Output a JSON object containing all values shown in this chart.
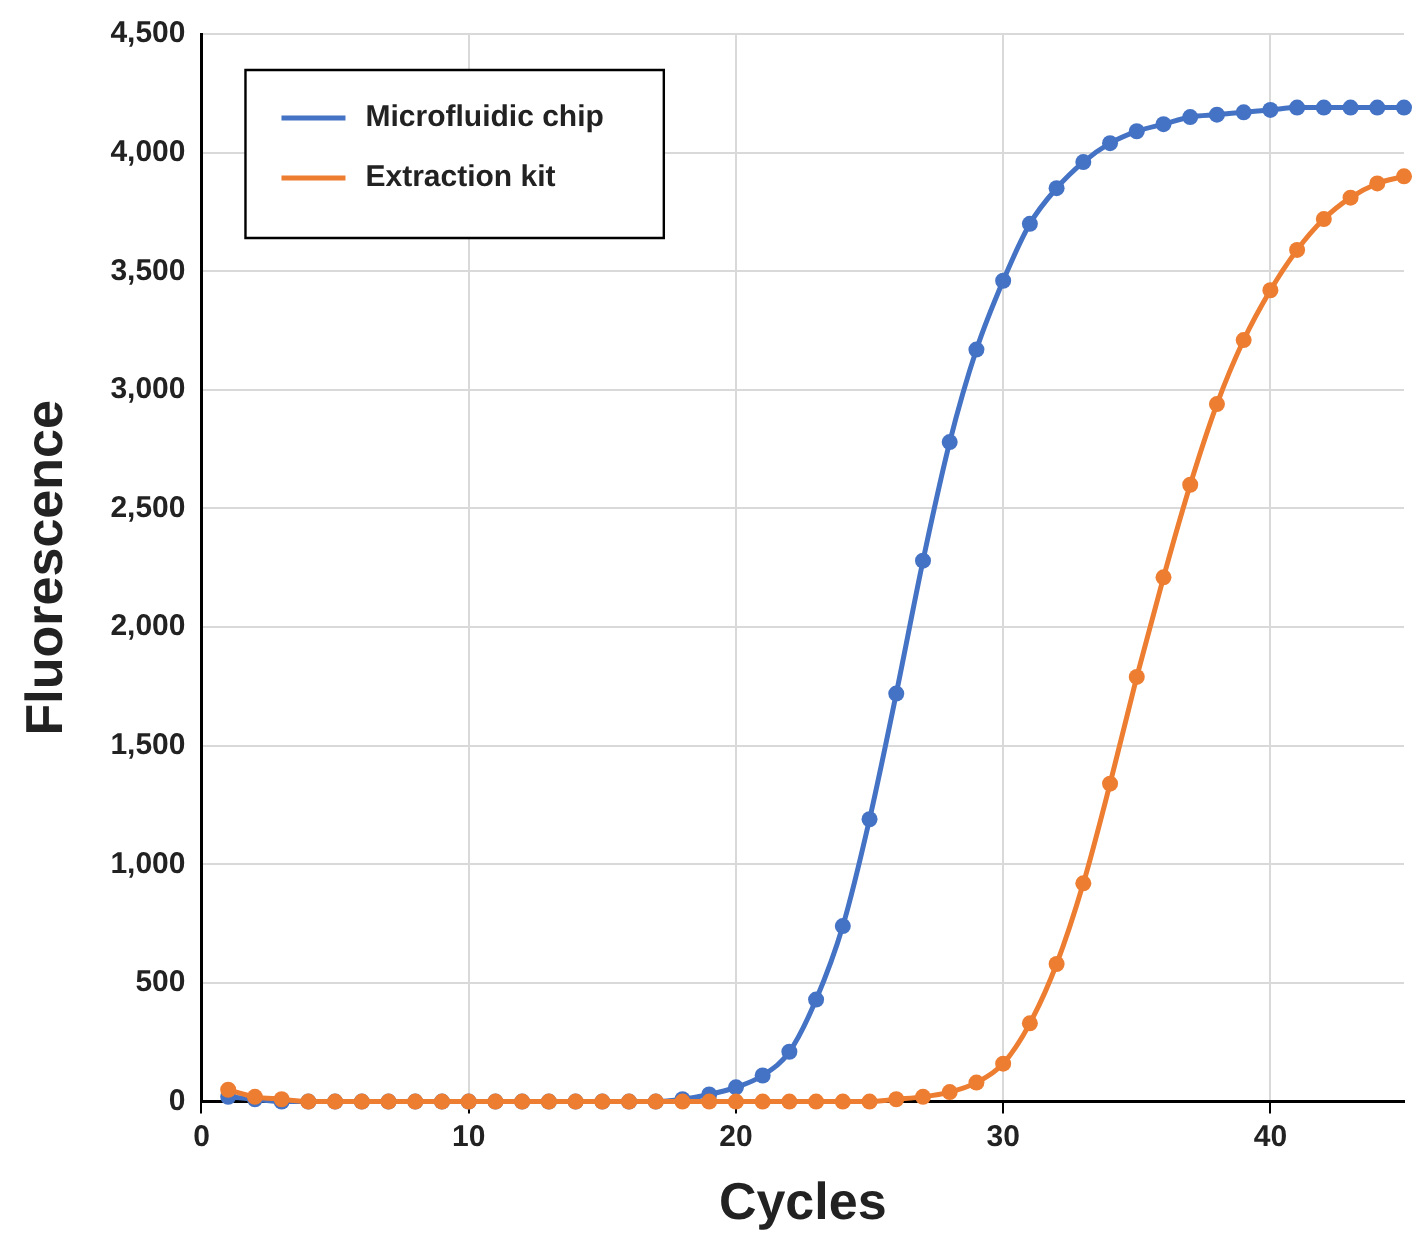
{
  "chart_data": {
    "type": "line",
    "xlabel": "Cycles",
    "ylabel": "Fluorescence",
    "x": [
      1,
      2,
      3,
      4,
      5,
      6,
      7,
      8,
      9,
      10,
      11,
      12,
      13,
      14,
      15,
      16,
      17,
      18,
      19,
      20,
      21,
      22,
      23,
      24,
      25,
      26,
      27,
      28,
      29,
      30,
      31,
      32,
      33,
      34,
      35,
      36,
      37,
      38,
      39,
      40,
      41,
      42,
      43,
      44,
      45
    ],
    "series": [
      {
        "name": "Microfluidic chip",
        "color": "#4472c4",
        "values": [
          20,
          10,
          0,
          0,
          0,
          0,
          0,
          0,
          0,
          0,
          0,
          0,
          0,
          0,
          0,
          0,
          0,
          10,
          30,
          60,
          110,
          210,
          430,
          740,
          1190,
          1720,
          2280,
          2780,
          3170,
          3460,
          3700,
          3850,
          3960,
          4040,
          4090,
          4120,
          4150,
          4160,
          4170,
          4180,
          4190,
          4190,
          4190,
          4190,
          4190
        ]
      },
      {
        "name": "Extraction kit",
        "color": "#ed7d31",
        "values": [
          50,
          20,
          10,
          0,
          0,
          0,
          0,
          0,
          0,
          0,
          0,
          0,
          0,
          0,
          0,
          0,
          0,
          0,
          0,
          0,
          0,
          0,
          0,
          0,
          0,
          10,
          20,
          40,
          80,
          160,
          330,
          580,
          920,
          1340,
          1790,
          2210,
          2600,
          2940,
          3210,
          3420,
          3590,
          3720,
          3810,
          3870,
          3900
        ]
      }
    ],
    "xlim": [
      0,
      45
    ],
    "xticks": [
      0,
      10,
      20,
      30,
      40
    ],
    "ylim": [
      0,
      4500
    ],
    "yticks": [
      {
        "value": 0,
        "label": "0"
      },
      {
        "value": 500,
        "label": "500"
      },
      {
        "value": 1000,
        "label": "1,000"
      },
      {
        "value": 1500,
        "label": "1,500"
      },
      {
        "value": 2000,
        "label": "2,000"
      },
      {
        "value": 2500,
        "label": "2,500"
      },
      {
        "value": 3000,
        "label": "3,000"
      },
      {
        "value": 3500,
        "label": "3,500"
      },
      {
        "value": 4000,
        "label": "4,000"
      },
      {
        "value": 4500,
        "label": "4,500"
      }
    ],
    "grid": true,
    "legend": "top left",
    "marker": "circle",
    "line_style": "solid"
  }
}
